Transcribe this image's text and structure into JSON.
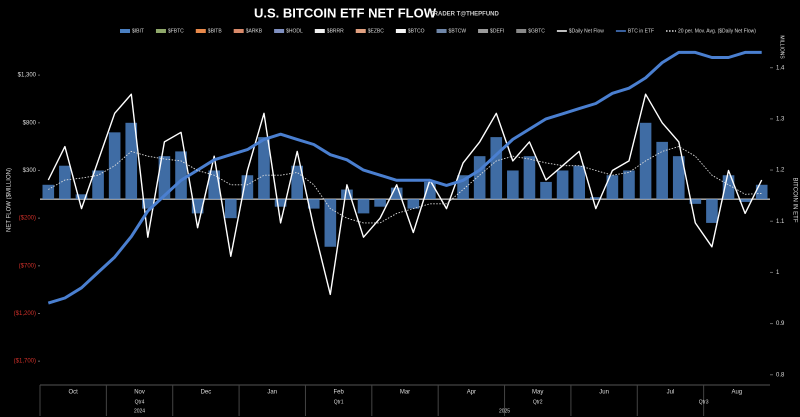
{
  "chart_data": {
    "type": "combo",
    "title": "U.S. BITCOIN ETF NET FLOW",
    "subtitle": "TRADER T@THEPFUND",
    "ylabel": "NET FLOW ($MILLION)",
    "y2label": "BITCOIN IN ETF",
    "y2unit": "MILLIONS",
    "categories": [
      "Oct",
      null,
      null,
      null,
      "Nov",
      null,
      null,
      null,
      "Dec",
      null,
      null,
      null,
      "Jan",
      null,
      null,
      null,
      "Feb",
      null,
      null,
      null,
      "Mar",
      null,
      null,
      null,
      "Apr",
      null,
      null,
      null,
      "May",
      null,
      null,
      null,
      "Jun",
      null,
      null,
      null,
      "Jul",
      null,
      null,
      null,
      "Aug",
      null,
      null,
      null
    ],
    "quarters": [
      "Qtr4",
      "Qtr1",
      "Qtr2",
      "Qtr3"
    ],
    "years": [
      "2024",
      "2025"
    ],
    "series": [
      {
        "name": "$IBIT",
        "type": "bar",
        "color": "#4a7fc1",
        "values": [
          150,
          350,
          50,
          300,
          700,
          800,
          -100,
          450,
          500,
          -150,
          300,
          -200,
          250,
          650,
          -80,
          350,
          -100,
          -500,
          100,
          -150,
          -80,
          120,
          -100,
          180,
          0,
          250,
          450,
          650,
          300,
          450,
          180,
          300,
          350,
          20,
          250,
          300,
          800,
          600,
          450,
          -50,
          -250,
          250,
          -30,
          150
        ]
      },
      {
        "name": "$Daily Net Flow",
        "type": "line",
        "color": "#ffffff",
        "values": [
          200,
          550,
          -100,
          400,
          900,
          1100,
          -400,
          600,
          700,
          -300,
          450,
          -600,
          300,
          900,
          -250,
          500,
          -300,
          -1000,
          150,
          -400,
          -200,
          150,
          -350,
          200,
          -100,
          380,
          600,
          900,
          400,
          600,
          200,
          350,
          500,
          -100,
          300,
          400,
          1100,
          800,
          600,
          -250,
          -500,
          300,
          -150,
          200
        ]
      },
      {
        "name": "BTC in ETF",
        "type": "line",
        "axis": "y2",
        "color": "#4a7fd0",
        "values": [
          0.94,
          0.95,
          0.97,
          1.0,
          1.03,
          1.07,
          1.12,
          1.15,
          1.18,
          1.2,
          1.22,
          1.23,
          1.24,
          1.26,
          1.27,
          1.26,
          1.25,
          1.23,
          1.22,
          1.2,
          1.19,
          1.18,
          1.18,
          1.18,
          1.17,
          1.18,
          1.2,
          1.23,
          1.26,
          1.28,
          1.3,
          1.31,
          1.32,
          1.33,
          1.35,
          1.36,
          1.38,
          1.41,
          1.43,
          1.43,
          1.42,
          1.42,
          1.43,
          1.43
        ]
      },
      {
        "name": "20 per. Mov. Avg. ($Daily Net Flow)",
        "type": "dotted",
        "color": "#dddddd",
        "values": [
          100,
          200,
          220,
          250,
          350,
          500,
          450,
          420,
          400,
          300,
          250,
          150,
          150,
          250,
          250,
          280,
          150,
          -100,
          -200,
          -250,
          -250,
          -150,
          -100,
          -50,
          -50,
          100,
          250,
          400,
          450,
          420,
          380,
          350,
          350,
          300,
          250,
          280,
          400,
          500,
          550,
          450,
          250,
          150,
          50,
          60
        ]
      }
    ],
    "other_legend": [
      {
        "name": "$FBTC",
        "color": "#8fa86a"
      },
      {
        "name": "$BITB",
        "color": "#e8894a"
      },
      {
        "name": "$ARKB",
        "color": "#d98a6a"
      },
      {
        "name": "$HODL",
        "color": "#7f8fc0"
      },
      {
        "name": "$BRRR",
        "color": "#f0f0f0"
      },
      {
        "name": "$EZBC",
        "color": "#e0a080"
      },
      {
        "name": "$BTCO",
        "color": "#f5f5f5"
      },
      {
        "name": "$BTCW",
        "color": "#6f86a8"
      },
      {
        "name": "$DEFI",
        "color": "#9a9a9a"
      },
      {
        "name": "$GBTC",
        "color": "#888888"
      }
    ],
    "ylim": [
      -1950,
      1700
    ],
    "yticks": [
      {
        "value": 1300,
        "label": "$1,300"
      },
      {
        "value": 800,
        "label": "$800"
      },
      {
        "value": 300,
        "label": "$300"
      },
      {
        "value": -200,
        "label": "($200)"
      },
      {
        "value": -700,
        "label": "($700)"
      },
      {
        "value": -1200,
        "label": "($1,200)"
      },
      {
        "value": -1700,
        "label": "($1,700)"
      }
    ],
    "y2lim": [
      0.78,
      1.46
    ],
    "y2ticks": [
      0.8,
      0.9,
      1.0,
      1.1,
      1.2,
      1.3,
      1.4
    ]
  }
}
